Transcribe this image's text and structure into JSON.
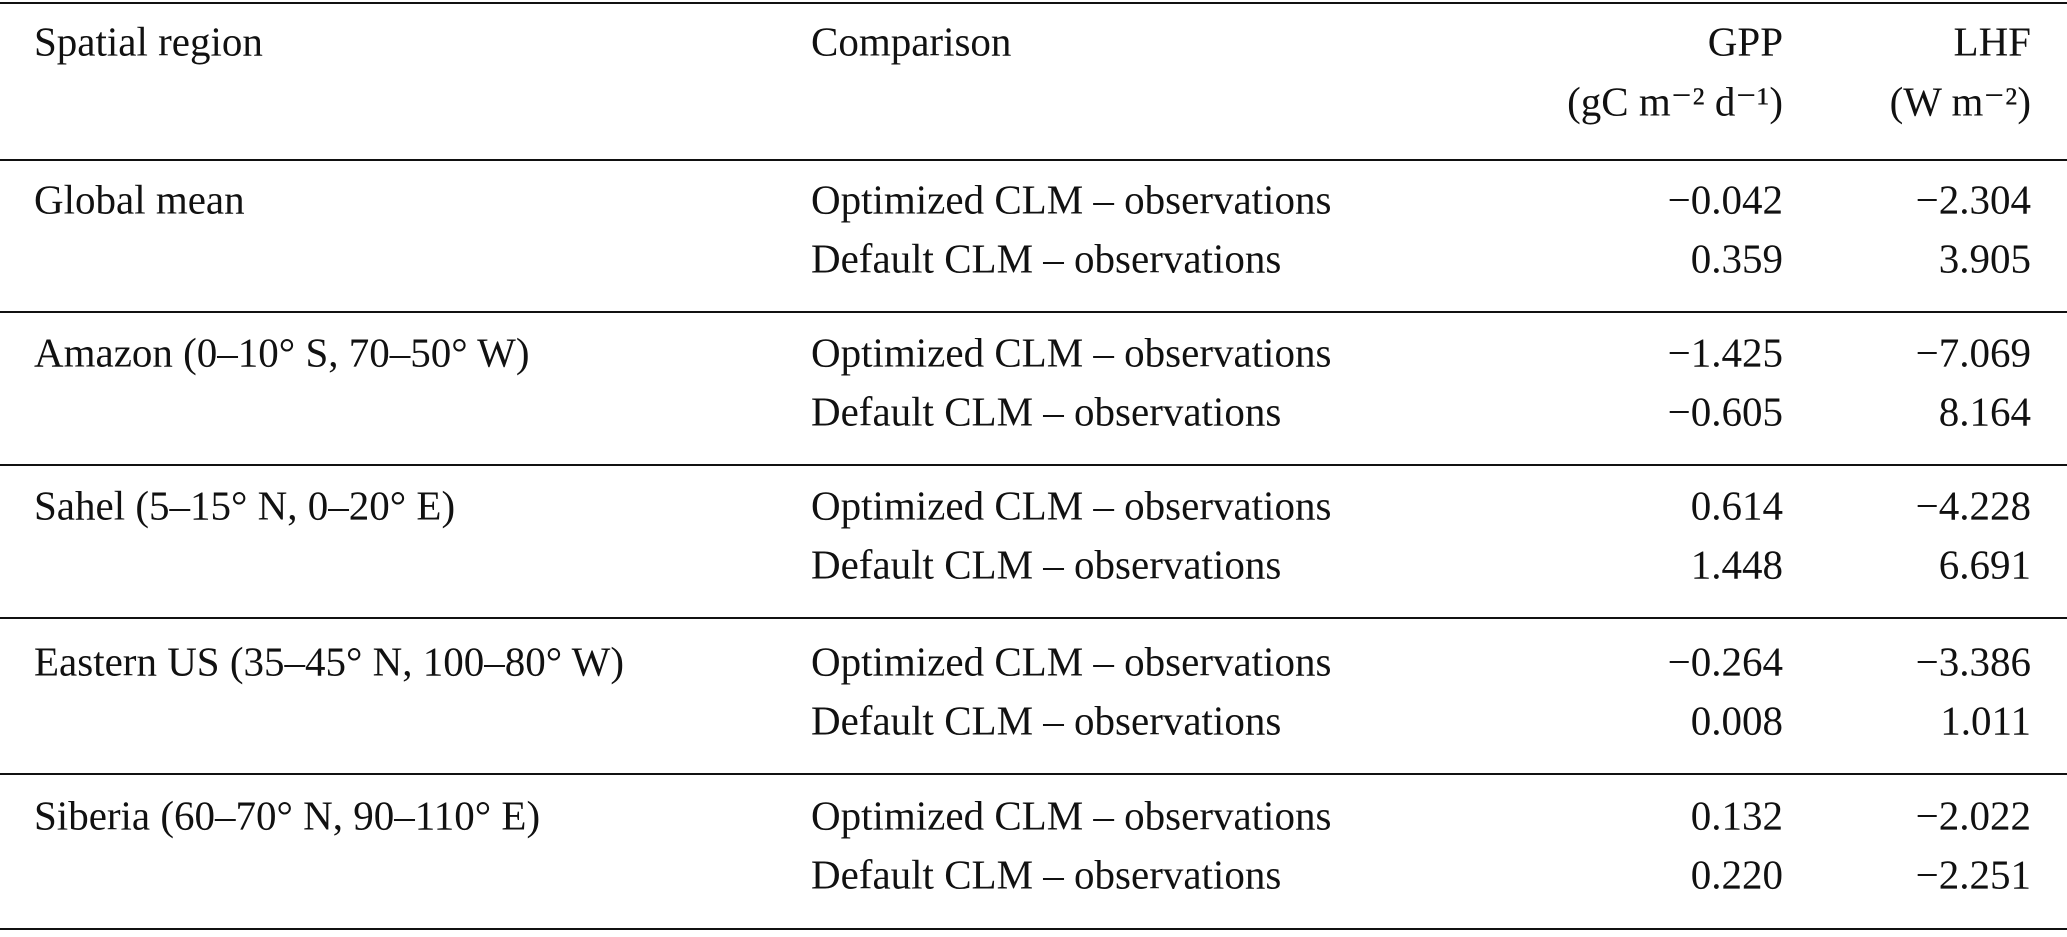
{
  "table": {
    "header": {
      "labels": [
        "Spatial region",
        "Comparison",
        "GPP",
        "LHF"
      ],
      "units": [
        "(gC m⁻² d⁻¹)",
        "(W m⁻²)"
      ]
    },
    "groups": [
      {
        "region": "Global mean",
        "rows": [
          [
            "Optimized CLM – observations",
            "−0.042",
            "−2.304"
          ],
          [
            "Default CLM – observations",
            "0.359",
            "3.905"
          ]
        ]
      },
      {
        "region": "Amazon (0–10° S, 70–50° W)",
        "rows": [
          [
            "Optimized CLM – observations",
            "−1.425",
            "−7.069"
          ],
          [
            "Default CLM – observations",
            "−0.605",
            "8.164"
          ]
        ]
      },
      {
        "region": "Sahel (5–15° N, 0–20° E)",
        "rows": [
          [
            "Optimized CLM – observations",
            "0.614",
            "−4.228"
          ],
          [
            "Default CLM – observations",
            "1.448",
            "6.691"
          ]
        ]
      },
      {
        "region": "Eastern US (35–45° N, 100–80° W)",
        "rows": [
          [
            "Optimized CLM – observations",
            "−0.264",
            "−3.386"
          ],
          [
            "Default CLM – observations",
            "0.008",
            "1.011"
          ]
        ]
      },
      {
        "region": "Siberia (60–70° N, 90–110° E)",
        "rows": [
          [
            "Optimized CLM – observations",
            "0.132",
            "−2.022"
          ],
          [
            "Default CLM – observations",
            "0.220",
            "−2.251"
          ]
        ]
      }
    ]
  }
}
